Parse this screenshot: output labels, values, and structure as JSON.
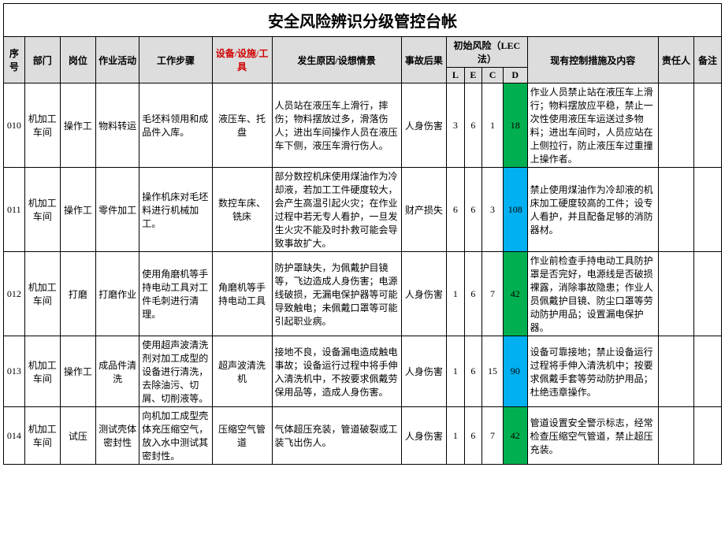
{
  "title": "安全风险辨识分级管控台帐",
  "headers": {
    "seq": "序号",
    "dept": "部门",
    "post": "岗位",
    "activity": "作业活动",
    "step": "工作步骤",
    "equip": "设备/设施/工具",
    "cause": "发生原因/设想情景",
    "result": "事故后果",
    "risk_group": "初始风险（LEC法）",
    "L": "L",
    "E": "E",
    "C": "C",
    "D": "D",
    "control": "现有控制措施及内容",
    "resp": "责任人",
    "note": "备注"
  },
  "d_colors": {
    "green": "#00b050",
    "blue": "#00b0f0"
  },
  "rows": [
    {
      "seq": "010",
      "dept": "机加工车间",
      "post": "操作工",
      "activity": "物料转运",
      "step": "毛坯料领用和成品件入库。",
      "equip": "液压车、托盘",
      "cause": "人员站在液压车上滑行，摔伤；物料摆放过多，滑落伤人；进出车间操作人员在液压车下侧，液压车滑行伤人。",
      "result": "人身伤害",
      "L": "3",
      "E": "6",
      "C": "1",
      "D": "18",
      "d_class": "d-green",
      "control": "作业人员禁止站在液压车上滑行；物料摆放应平稳，禁止一次性使用液压车运送过多物料；进出车间时，人员应站在上侧拉行，防止液压车过重撞上操作者。",
      "resp": "",
      "note": ""
    },
    {
      "seq": "011",
      "dept": "机加工车间",
      "post": "操作工",
      "activity": "零件加工",
      "step": "操作机床对毛坯料进行机械加工。",
      "equip": "数控车床、铣床",
      "cause": "部分数控机床使用煤油作为冷却液，若加工工件硬度较大，会产生高温引起火灾；在作业过程中若无专人看护，一旦发生火灾不能及时扑救可能会导致事故扩大。",
      "result": "财产损失",
      "L": "6",
      "E": "6",
      "C": "3",
      "D": "108",
      "d_class": "d-blue",
      "control": "禁止使用煤油作为冷却液的机床加工硬度较高的工件；设专人看护，并且配备足够的消防器材。",
      "resp": "",
      "note": ""
    },
    {
      "seq": "012",
      "dept": "机加工车间",
      "post": "打磨",
      "activity": "打磨作业",
      "step": "使用角磨机等手持电动工具对工件毛刺进行清理。",
      "equip": "角磨机等手持电动工具",
      "cause": "防护罩缺失，为佩戴护目镜等，飞边造成人身伤害；电源线破损，无漏电保护器等可能导致触电；未佩戴口罩等可能引起职业病。",
      "result": "人身伤害",
      "L": "1",
      "E": "6",
      "C": "7",
      "D": "42",
      "d_class": "d-green",
      "control": "作业前检查手持电动工具防护罩是否完好，电源线是否破损裸露，消除事故隐患；作业人员佩戴护目镜、防尘口罩等劳动防护用品；设置漏电保护器。",
      "resp": "",
      "note": ""
    },
    {
      "seq": "013",
      "dept": "机加工车间",
      "post": "操作工",
      "activity": "成品件清洗",
      "step": "使用超声波清洗剂对加工成型的设备进行清洗，去除油污、切屑、切削液等。",
      "equip": "超声波清洗机",
      "cause": "接地不良，设备漏电造成触电事故；设备运行过程中将手伸入清洗机中，不按要求佩戴劳保用品等，造成人身伤害。",
      "result": "人身伤害",
      "L": "1",
      "E": "6",
      "C": "15",
      "D": "90",
      "d_class": "d-blue",
      "control": "设备可靠接地；禁止设备运行过程将手伸入清洗机中；按要求佩戴手套等劳动防护用品；杜绝违章操作。",
      "resp": "",
      "note": ""
    },
    {
      "seq": "014",
      "dept": "机加工车间",
      "post": "试压",
      "activity": "测试壳体密封性",
      "step": "向机加工成型壳体充压缩空气，放入水中测试其密封性。",
      "equip": "压缩空气管道",
      "cause": "气体超压充装，管道破裂或工装飞出伤人。",
      "result": "人身伤害",
      "L": "1",
      "E": "6",
      "C": "7",
      "D": "42",
      "d_class": "d-green",
      "control": "管道设置安全警示标志，经常检查压缩空气管道，禁止超压充装。",
      "resp": "",
      "note": ""
    }
  ]
}
